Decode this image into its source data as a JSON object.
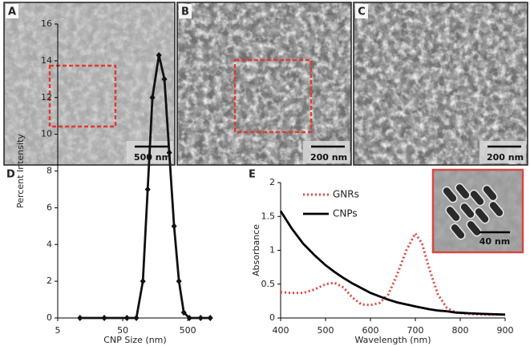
{
  "micrographs": [
    {
      "label": "A",
      "scale_bar": "500 nm"
    },
    {
      "label": "B",
      "scale_bar": "200 nm"
    },
    {
      "label": "C",
      "scale_bar": "200 nm"
    }
  ],
  "chart_data": [
    {
      "type": "line",
      "label": "D",
      "x_label": "CNP Size (nm)",
      "y_label": "Percent Intensity",
      "xscale": "log",
      "xlim": [
        5,
        1200
      ],
      "xticks": [
        5,
        50,
        500
      ],
      "ylim": [
        0,
        16
      ],
      "yticks": [
        0,
        2,
        4,
        6,
        8,
        10,
        12,
        14,
        16
      ],
      "x": [
        11,
        26,
        58,
        81,
        102,
        121,
        143,
        180,
        219,
        260,
        308,
        366,
        434,
        530,
        789,
        1109
      ],
      "series": [
        {
          "color": "#111111",
          "marker": "diamond",
          "values": [
            0,
            0,
            0,
            0,
            2,
            7,
            12,
            14.3,
            13,
            9,
            5,
            2,
            0.3,
            0,
            0,
            0
          ]
        }
      ]
    },
    {
      "type": "line",
      "label": "E",
      "x_label": "Wavelength (nm)",
      "y_label": "Absorbance",
      "xlim": [
        400,
        900
      ],
      "xticks": [
        400,
        500,
        600,
        700,
        800,
        900
      ],
      "ylim": [
        0,
        2
      ],
      "yticks": [
        0,
        0.5,
        1,
        1.5,
        2
      ],
      "legend": "upper left",
      "x": [
        400,
        425,
        450,
        475,
        500,
        520,
        540,
        560,
        580,
        600,
        620,
        640,
        660,
        680,
        700,
        715,
        730,
        750,
        770,
        790,
        820,
        850,
        900
      ],
      "series": [
        {
          "name": "GNRs",
          "color": "#d9473f",
          "dash": "dotted",
          "values": [
            0.38,
            0.37,
            0.37,
            0.42,
            0.5,
            0.52,
            0.45,
            0.3,
            0.2,
            0.19,
            0.22,
            0.35,
            0.65,
            1.0,
            1.25,
            1.1,
            0.75,
            0.35,
            0.15,
            0.08,
            0.06,
            0.05,
            0.05
          ]
        },
        {
          "name": "CNPs",
          "color": "#000000",
          "dash": "solid",
          "values": [
            1.58,
            1.32,
            1.1,
            0.93,
            0.78,
            0.68,
            0.59,
            0.51,
            0.44,
            0.37,
            0.32,
            0.27,
            0.23,
            0.2,
            0.17,
            0.15,
            0.13,
            0.11,
            0.1,
            0.08,
            0.07,
            0.06,
            0.05
          ]
        }
      ],
      "inset": {
        "scale_bar": "40 nm"
      }
    }
  ]
}
